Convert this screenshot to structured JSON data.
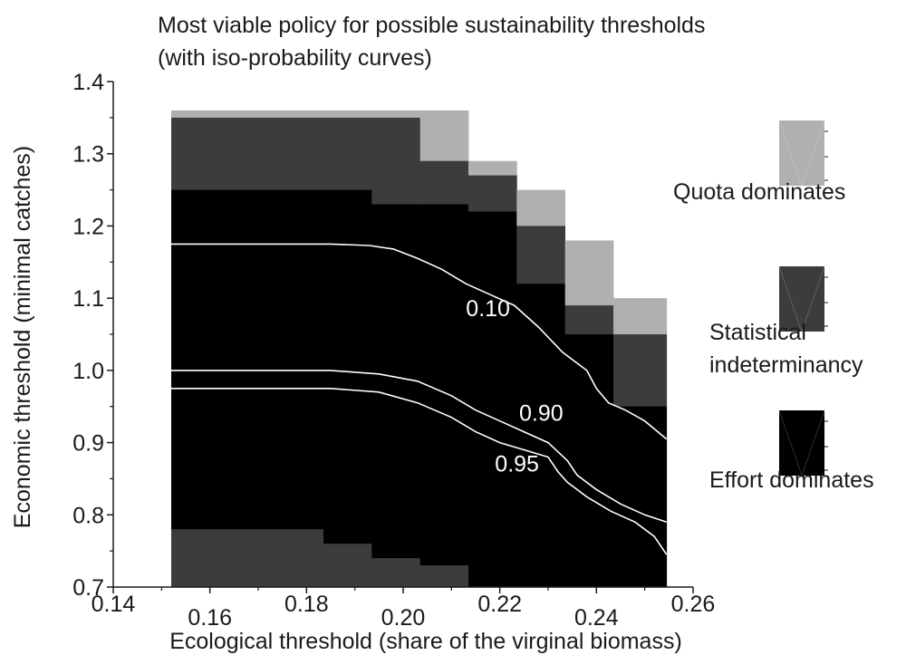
{
  "chart_data": {
    "type": "heatmap",
    "title": "Most viable policy for possible sustainability thresholds",
    "subtitle": "(with iso-probability curves)",
    "xlabel": "Ecological threshold (share of the virginal biomass)",
    "ylabel": "Economic threshold (minimal catches)",
    "xlim": [
      0.14,
      0.26
    ],
    "ylim": [
      0.7,
      1.4
    ],
    "x_ticks": [
      0.14,
      0.16,
      0.18,
      0.2,
      0.22,
      0.24,
      0.26
    ],
    "x_tick_labels": [
      "0.14",
      "0.16",
      "0.18",
      "0.20",
      "0.22",
      "0.24",
      "0.26"
    ],
    "y_ticks": [
      0.7,
      0.8,
      0.9,
      1.0,
      1.1,
      1.2,
      1.3,
      1.4
    ],
    "y_tick_labels": [
      "0.7",
      "0.8",
      "0.9",
      "1.0",
      "1.1",
      "1.2",
      "1.3",
      "1.4"
    ],
    "categories": [
      "Quota dominates",
      "Statistical indeterminancy",
      "Effort dominates"
    ],
    "colors": {
      "Quota dominates": "#b0b0b0",
      "Statistical indeterminancy": "#3c3c3c",
      "Effort dominates": "#000000",
      "curve": "#ffffff",
      "axis": "#1a1a1a"
    },
    "cells": [
      {
        "x0": 0.152,
        "x1": 0.1935,
        "y0": 1.35,
        "y1": 1.36,
        "class": "Quota dominates"
      },
      {
        "x0": 0.152,
        "x1": 0.1935,
        "y0": 1.25,
        "y1": 1.35,
        "class": "Statistical indeterminancy"
      },
      {
        "x0": 0.152,
        "x1": 0.1935,
        "y0": 0.78,
        "y1": 1.25,
        "class": "Effort dominates"
      },
      {
        "x0": 0.152,
        "x1": 0.1835,
        "y0": 0.7,
        "y1": 0.78,
        "class": "Statistical indeterminancy"
      },
      {
        "x0": 0.1835,
        "x1": 0.1935,
        "y0": 0.76,
        "y1": 0.78,
        "class": "Effort dominates"
      },
      {
        "x0": 0.1835,
        "x1": 0.1935,
        "y0": 0.7,
        "y1": 0.76,
        "class": "Statistical indeterminancy"
      },
      {
        "x0": 0.1935,
        "x1": 0.2035,
        "y0": 1.35,
        "y1": 1.36,
        "class": "Quota dominates"
      },
      {
        "x0": 0.1935,
        "x1": 0.2035,
        "y0": 1.23,
        "y1": 1.35,
        "class": "Statistical indeterminancy"
      },
      {
        "x0": 0.1935,
        "x1": 0.2035,
        "y0": 0.74,
        "y1": 1.23,
        "class": "Effort dominates"
      },
      {
        "x0": 0.1935,
        "x1": 0.2035,
        "y0": 0.7,
        "y1": 0.74,
        "class": "Statistical indeterminancy"
      },
      {
        "x0": 0.2035,
        "x1": 0.2135,
        "y0": 1.29,
        "y1": 1.36,
        "class": "Quota dominates"
      },
      {
        "x0": 0.2035,
        "x1": 0.2135,
        "y0": 1.23,
        "y1": 1.29,
        "class": "Statistical indeterminancy"
      },
      {
        "x0": 0.2035,
        "x1": 0.2135,
        "y0": 0.73,
        "y1": 1.23,
        "class": "Effort dominates"
      },
      {
        "x0": 0.2035,
        "x1": 0.2135,
        "y0": 0.7,
        "y1": 0.73,
        "class": "Statistical indeterminancy"
      },
      {
        "x0": 0.2135,
        "x1": 0.2235,
        "y0": 1.27,
        "y1": 1.29,
        "class": "Quota dominates"
      },
      {
        "x0": 0.2135,
        "x1": 0.2235,
        "y0": 1.22,
        "y1": 1.27,
        "class": "Statistical indeterminancy"
      },
      {
        "x0": 0.2135,
        "x1": 0.2235,
        "y0": 0.7,
        "y1": 1.22,
        "class": "Effort dominates"
      },
      {
        "x0": 0.2235,
        "x1": 0.2335,
        "y0": 1.2,
        "y1": 1.25,
        "class": "Quota dominates"
      },
      {
        "x0": 0.2235,
        "x1": 0.2335,
        "y0": 1.18,
        "y1": 1.2,
        "class": "Statistical indeterminancy"
      },
      {
        "x0": 0.2235,
        "x1": 0.2335,
        "y0": 1.12,
        "y1": 1.18,
        "class": "Statistical indeterminancy"
      },
      {
        "x0": 0.2235,
        "x1": 0.2335,
        "y0": 0.7,
        "y1": 1.12,
        "class": "Effort dominates"
      },
      {
        "x0": 0.2335,
        "x1": 0.2435,
        "y0": 1.09,
        "y1": 1.18,
        "class": "Quota dominates"
      },
      {
        "x0": 0.2335,
        "x1": 0.2435,
        "y0": 1.05,
        "y1": 1.09,
        "class": "Statistical indeterminancy"
      },
      {
        "x0": 0.2335,
        "x1": 0.2435,
        "y0": 0.7,
        "y1": 1.05,
        "class": "Effort dominates"
      },
      {
        "x0": 0.2435,
        "x1": 0.2545,
        "y0": 1.05,
        "y1": 1.1,
        "class": "Quota dominates"
      },
      {
        "x0": 0.2435,
        "x1": 0.2545,
        "y0": 0.95,
        "y1": 1.05,
        "class": "Statistical indeterminancy"
      },
      {
        "x0": 0.2435,
        "x1": 0.2545,
        "y0": 0.7,
        "y1": 0.95,
        "class": "Effort dominates"
      }
    ],
    "series": [
      {
        "name": "0.10",
        "x": [
          0.152,
          0.17,
          0.185,
          0.193,
          0.198,
          0.203,
          0.208,
          0.213,
          0.218,
          0.223,
          0.228,
          0.233,
          0.238,
          0.24,
          0.2425,
          0.246,
          0.25,
          0.2545
        ],
        "y": [
          1.175,
          1.175,
          1.175,
          1.173,
          1.168,
          1.155,
          1.14,
          1.12,
          1.105,
          1.09,
          1.06,
          1.025,
          1.0,
          0.975,
          0.955,
          0.945,
          0.93,
          0.905
        ]
      },
      {
        "name": "0.90",
        "x": [
          0.152,
          0.17,
          0.185,
          0.195,
          0.203,
          0.21,
          0.215,
          0.22,
          0.225,
          0.23,
          0.234,
          0.236,
          0.24,
          0.245,
          0.25,
          0.2545
        ],
        "y": [
          1.0,
          1.0,
          1.0,
          0.995,
          0.985,
          0.965,
          0.945,
          0.93,
          0.915,
          0.9,
          0.875,
          0.855,
          0.835,
          0.815,
          0.8,
          0.79
        ]
      },
      {
        "name": "0.95",
        "x": [
          0.152,
          0.17,
          0.185,
          0.195,
          0.203,
          0.21,
          0.215,
          0.22,
          0.225,
          0.23,
          0.232,
          0.234,
          0.238,
          0.243,
          0.248,
          0.252,
          0.2545
        ],
        "y": [
          0.975,
          0.975,
          0.975,
          0.97,
          0.955,
          0.935,
          0.915,
          0.9,
          0.89,
          0.88,
          0.86,
          0.845,
          0.825,
          0.805,
          0.79,
          0.77,
          0.745
        ]
      }
    ],
    "annotations": [
      {
        "text": "0.10",
        "x": 0.213,
        "y": 1.075
      },
      {
        "text": "0.90",
        "x": 0.224,
        "y": 0.93
      },
      {
        "text": "0.95",
        "x": 0.219,
        "y": 0.86
      }
    ],
    "legend": {
      "placement": "right",
      "entries": [
        {
          "label": "Quota dominates",
          "color": "#b0b0b0"
        },
        {
          "label": "Statistical indeterminancy",
          "lines": [
            "Statistical",
            "indeterminancy"
          ],
          "color": "#3c3c3c"
        },
        {
          "label": "Effort dominates",
          "color": "#000000"
        }
      ]
    },
    "grid": false
  }
}
